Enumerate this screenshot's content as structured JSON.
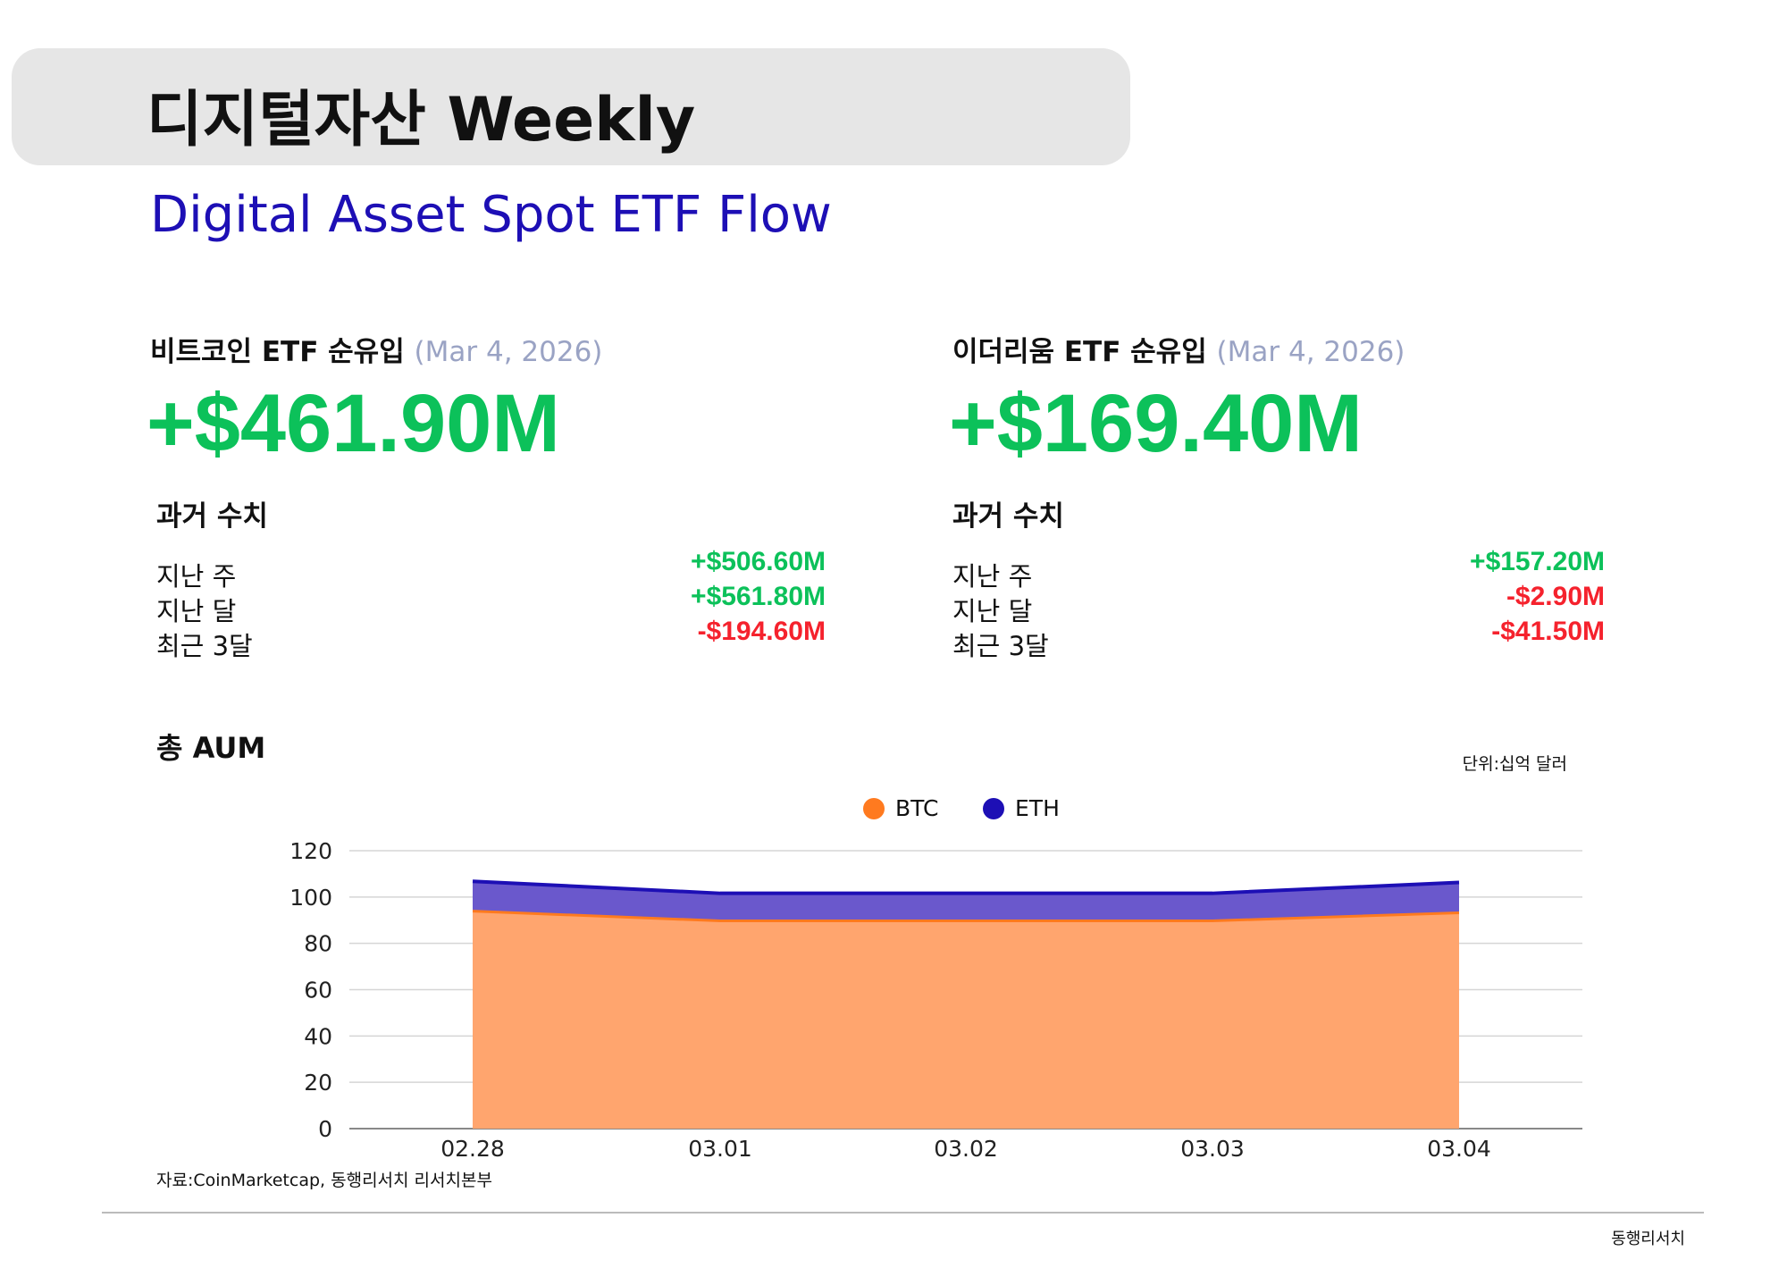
{
  "header": {
    "title": "디지털자산 Weekly",
    "subtitle": "Digital Asset Spot ETF Flow"
  },
  "btc": {
    "label": "비트코인 ETF 순유입",
    "date": "(Mar 4, 2026)",
    "value": "+$461.90M",
    "history_title": "과거 수치",
    "history": [
      {
        "label": "지난 주",
        "value": "+$506.60M",
        "sign": "pos"
      },
      {
        "label": "지난 달",
        "value": "+$561.80M",
        "sign": "pos"
      },
      {
        "label": "최근 3달",
        "value": "-$194.60M",
        "sign": "neg"
      }
    ]
  },
  "eth": {
    "label": "이더리움 ETF 순유입",
    "date": "(Mar 4, 2026)",
    "value": "+$169.40M",
    "history_title": "과거 수치",
    "history": [
      {
        "label": "지난 주",
        "value": "+$157.20M",
        "sign": "pos"
      },
      {
        "label": "지난 달",
        "value": "-$2.90M",
        "sign": "neg"
      },
      {
        "label": "최근 3달",
        "value": "-$41.50M",
        "sign": "neg"
      }
    ]
  },
  "aum": {
    "title": "총 AUM",
    "unit": "단위:십억 달러"
  },
  "colors": {
    "positive": "#0cc15a",
    "negative": "#f5222d",
    "btc": "#ff7a1f",
    "eth": "#1d0fb5"
  },
  "chart_data": {
    "type": "area",
    "stacked": true,
    "categories": [
      "02.28",
      "03.01",
      "03.02",
      "03.03",
      "03.04"
    ],
    "series": [
      {
        "name": "BTC",
        "values": [
          93.9,
          89.7,
          89.7,
          89.7,
          93.2
        ],
        "color": "#ff7a1f"
      },
      {
        "name": "ETH",
        "values": [
          12.9,
          11.9,
          11.9,
          11.9,
          13.1
        ],
        "color": "#1d0fb5"
      }
    ],
    "ylim": [
      0,
      120
    ],
    "yticks": [
      0,
      20,
      40,
      60,
      80,
      100,
      120
    ],
    "grid": true,
    "legend": "top-center"
  },
  "source": "자료:CoinMarketcap, 동행리서치 리서치본부",
  "footer": "동행리서치"
}
